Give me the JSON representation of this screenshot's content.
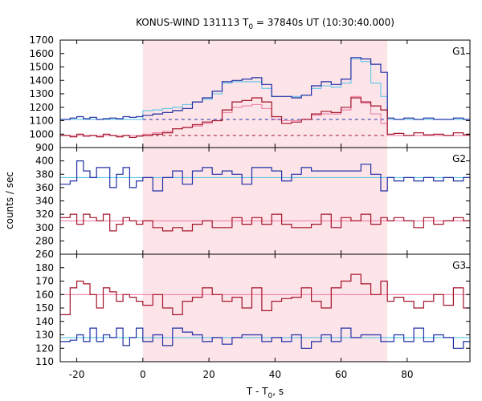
{
  "title": {
    "prefix": "KONUS-WIND 131113 T",
    "sub": "0",
    "suffix": " = 37840s UT (10:30:40.000)"
  },
  "xlabel": {
    "prefix": "T - T",
    "sub": "0",
    "suffix": ", s"
  },
  "ylabel": "counts / sec",
  "colors": {
    "blue": "#1f2fa5",
    "dark_red": "#a3142a",
    "light_blue": "#5ec4e8",
    "pink": "#f080a8",
    "shade": "#fde4e8"
  },
  "chart_data": {
    "type": "step-line",
    "xlim": [
      -25,
      99
    ],
    "xticks": [
      -20,
      0,
      20,
      40,
      60,
      80
    ],
    "shade_interval": [
      0,
      74
    ],
    "bin_edges_s": [
      -25,
      -22,
      -20,
      -18,
      -16,
      -14,
      -12,
      -10,
      -8,
      -6,
      -4,
      -2,
      0,
      3,
      6,
      9,
      12,
      15,
      18,
      21,
      24,
      27,
      30,
      33,
      36,
      39,
      42,
      45,
      48,
      51,
      54,
      57,
      60,
      63,
      66,
      69,
      72,
      74,
      76,
      79,
      82,
      85,
      88,
      91,
      94,
      97,
      99
    ],
    "panels": [
      {
        "name": "G1",
        "ylim": [
          900,
          1700
        ],
        "yticks": [
          900,
          1000,
          1100,
          1200,
          1300,
          1400,
          1500,
          1600,
          1700
        ],
        "series": [
          {
            "color": "blue",
            "values": [
              1110,
              1120,
              1130,
              1115,
              1125,
              1110,
              1115,
              1120,
              1115,
              1130,
              1125,
              1130,
              1140,
              1150,
              1160,
              1175,
              1190,
              1240,
              1270,
              1320,
              1390,
              1400,
              1410,
              1420,
              1370,
              1280,
              1280,
              1270,
              1290,
              1360,
              1390,
              1370,
              1410,
              1570,
              1560,
              1520,
              1460,
              1120,
              1110,
              1120,
              1110,
              1120,
              1110,
              1110,
              1120,
              1110
            ]
          },
          {
            "color": "dark_red",
            "values": [
              990,
              980,
              1000,
              985,
              990,
              980,
              1000,
              990,
              980,
              990,
              975,
              985,
              990,
              1000,
              1010,
              1040,
              1050,
              1070,
              1090,
              1100,
              1180,
              1240,
              1250,
              1270,
              1240,
              1130,
              1080,
              1090,
              1110,
              1150,
              1170,
              1160,
              1200,
              1270,
              1240,
              1210,
              1180,
              1000,
              1005,
              990,
              1010,
              995,
              1000,
              990,
              1010,
              995
            ]
          }
        ],
        "model": [
          {
            "color": "light_blue",
            "baseline": 1110,
            "values": [
              1110,
              1110,
              1110,
              1110,
              1110,
              1110,
              1110,
              1110,
              1110,
              1110,
              1110,
              1110,
              1175,
              1180,
              1190,
              1200,
              1220,
              1240,
              1260,
              1300,
              1380,
              1390,
              1390,
              1390,
              1340,
              1280,
              1280,
              1280,
              1290,
              1340,
              1360,
              1350,
              1380,
              1560,
              1540,
              1380,
              1280,
              1110,
              1110,
              1110,
              1110,
              1110,
              1110,
              1110,
              1110,
              1110
            ]
          },
          {
            "color": "pink",
            "baseline": 990,
            "values": [
              990,
              990,
              990,
              990,
              990,
              990,
              990,
              990,
              990,
              990,
              990,
              990,
              1000,
              1010,
              1020,
              1040,
              1050,
              1060,
              1080,
              1100,
              1160,
              1200,
              1210,
              1220,
              1190,
              1110,
              1100,
              1100,
              1110,
              1140,
              1150,
              1150,
              1180,
              1280,
              1230,
              1150,
              1080,
              990,
              990,
              990,
              990,
              990,
              990,
              990,
              990,
              990
            ]
          }
        ],
        "dashed": [
          {
            "color": "blue",
            "value": 1110,
            "range": [
              0,
              74
            ]
          },
          {
            "color": "dark_red",
            "value": 990,
            "range": [
              0,
              74
            ]
          }
        ]
      },
      {
        "name": "G2",
        "ylim": [
          260,
          420
        ],
        "yticks": [
          260,
          280,
          300,
          320,
          340,
          360,
          380,
          400
        ],
        "series": [
          {
            "color": "blue",
            "values": [
              365,
              370,
              400,
              385,
              375,
              390,
              390,
              360,
              380,
              390,
              360,
              370,
              375,
              355,
              375,
              385,
              365,
              385,
              390,
              380,
              385,
              380,
              365,
              390,
              390,
              385,
              370,
              380,
              390,
              385,
              385,
              385,
              385,
              385,
              395,
              380,
              355,
              375,
              370,
              375,
              370,
              375,
              370,
              375,
              370,
              375
            ]
          },
          {
            "color": "dark_red",
            "values": [
              315,
              320,
              305,
              320,
              315,
              310,
              320,
              295,
              305,
              315,
              310,
              305,
              310,
              300,
              295,
              300,
              295,
              305,
              310,
              300,
              300,
              315,
              305,
              315,
              305,
              320,
              305,
              300,
              300,
              305,
              320,
              300,
              315,
              310,
              320,
              305,
              315,
              310,
              315,
              310,
              300,
              315,
              305,
              310,
              315,
              310
            ]
          }
        ],
        "model": [
          {
            "color": "light_blue",
            "baseline": 375,
            "values": [
              375,
              375,
              375,
              375,
              375,
              375,
              375,
              375,
              375,
              375,
              375,
              375,
              375,
              375,
              375,
              375,
              375,
              375,
              375,
              375,
              375,
              375,
              375,
              375,
              375,
              375,
              375,
              375,
              375,
              375,
              375,
              375,
              375,
              375,
              375,
              375,
              375,
              375,
              375,
              375,
              375,
              375,
              375,
              375,
              375,
              375
            ]
          },
          {
            "color": "pink",
            "baseline": 310,
            "values": [
              310,
              310,
              310,
              310,
              310,
              310,
              310,
              310,
              310,
              310,
              310,
              310,
              310,
              310,
              310,
              310,
              310,
              310,
              310,
              310,
              310,
              310,
              310,
              310,
              310,
              310,
              310,
              310,
              310,
              310,
              310,
              310,
              310,
              310,
              310,
              310,
              310,
              310,
              310,
              310,
              310,
              310,
              310,
              310,
              310,
              310
            ]
          }
        ],
        "dashed": []
      },
      {
        "name": "G3",
        "ylim": [
          110,
          190
        ],
        "yticks": [
          110,
          120,
          130,
          140,
          150,
          160,
          170,
          180
        ],
        "series": [
          {
            "color": "dark_red",
            "values": [
              145,
              165,
              170,
              168,
              160,
              150,
              165,
              162,
              155,
              160,
              158,
              155,
              152,
              160,
              150,
              145,
              155,
              158,
              165,
              160,
              155,
              158,
              150,
              165,
              148,
              155,
              157,
              158,
              165,
              155,
              150,
              165,
              170,
              175,
              168,
              160,
              170,
              155,
              158,
              155,
              150,
              155,
              160,
              152,
              165,
              150
            ]
          },
          {
            "color": "blue",
            "values": [
              125,
              126,
              130,
              125,
              135,
              125,
              130,
              128,
              135,
              122,
              128,
              135,
              125,
              130,
              122,
              135,
              132,
              130,
              125,
              128,
              123,
              128,
              130,
              130,
              125,
              128,
              125,
              130,
              120,
              125,
              130,
              125,
              135,
              128,
              130,
              130,
              125,
              125,
              130,
              125,
              135,
              125,
              130,
              128,
              120,
              125
            ]
          }
        ],
        "model": [
          {
            "color": "pink",
            "baseline": 160,
            "values": [
              160,
              160,
              160,
              160,
              160,
              160,
              160,
              160,
              160,
              160,
              160,
              160,
              160,
              160,
              160,
              160,
              160,
              160,
              160,
              160,
              160,
              160,
              160,
              160,
              160,
              160,
              160,
              160,
              160,
              160,
              160,
              160,
              160,
              160,
              160,
              160,
              160,
              160,
              160,
              160,
              160,
              160,
              160,
              160,
              160,
              160
            ]
          },
          {
            "color": "light_blue",
            "baseline": 128,
            "values": [
              128,
              128,
              128,
              128,
              128,
              128,
              128,
              128,
              128,
              128,
              128,
              128,
              128,
              128,
              128,
              128,
              128,
              128,
              128,
              128,
              128,
              128,
              128,
              128,
              128,
              128,
              128,
              128,
              128,
              128,
              128,
              128,
              128,
              128,
              128,
              128,
              128,
              128,
              128,
              128,
              128,
              128,
              128,
              128,
              128,
              128
            ]
          }
        ],
        "dashed": []
      }
    ]
  }
}
